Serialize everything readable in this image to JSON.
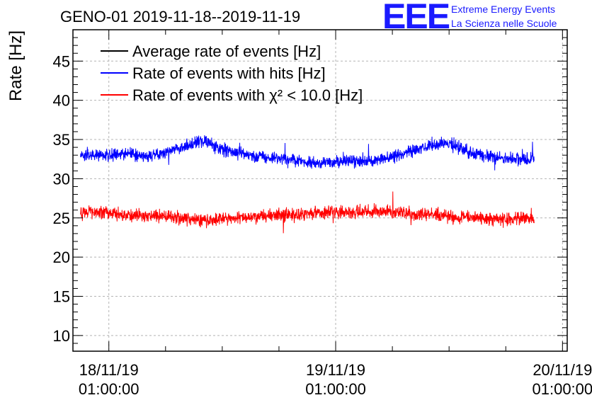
{
  "chart_data": {
    "type": "line",
    "title": "GENO-01 2019-11-18--2019-11-19",
    "logo": {
      "letters": "EEE",
      "line1": "Extreme Energy Events",
      "line2": "La Scienza nelle Scuole",
      "color": "#1a1aff"
    },
    "ylabel": "Rate [Hz]",
    "xlabel": "",
    "ylim": [
      8,
      49
    ],
    "yticks": [
      10,
      15,
      20,
      25,
      30,
      35,
      40,
      45
    ],
    "xlim_hours": [
      -3.8,
      48.5
    ],
    "xticks": [
      {
        "hour": 0,
        "date": "18/11/19",
        "time": "01:00:00"
      },
      {
        "hour": 24,
        "date": "19/11/19",
        "time": "01:00:00"
      },
      {
        "hour": 48,
        "date": "20/11/19",
        "time": "01:00:00"
      }
    ],
    "grid": true,
    "legend_position": "top-left",
    "series": [
      {
        "name": "Average rate of events [Hz]",
        "color": "#000000",
        "x_hours": [],
        "values": []
      },
      {
        "name": "Rate of events with hits [Hz]",
        "color": "#0000ff",
        "x_hours": [
          -3.0,
          -1.0,
          0.0,
          2.0,
          4.0,
          6.0,
          8.0,
          9.5,
          10.5,
          12.0,
          14.0,
          16.0,
          18.0,
          20.0,
          22.0,
          24.0,
          26.0,
          28.0,
          30.0,
          32.0,
          34.0,
          35.5,
          37.0,
          38.0,
          40.0,
          42.0,
          44.0,
          45.0
        ],
        "values": [
          32.8,
          33.0,
          33.0,
          33.2,
          32.8,
          33.3,
          34.2,
          34.8,
          34.6,
          33.8,
          33.2,
          32.8,
          32.6,
          32.2,
          32.0,
          32.1,
          32.3,
          32.3,
          32.8,
          33.5,
          34.2,
          34.6,
          34.0,
          33.4,
          32.9,
          32.5,
          32.5,
          32.6
        ],
        "noise": 0.8
      },
      {
        "name": "Rate of events with χ² < 10.0 [Hz]",
        "color": "#ff0000",
        "x_hours": [
          -3.0,
          -1.0,
          0.0,
          2.0,
          4.0,
          6.0,
          8.0,
          10.0,
          12.0,
          14.0,
          16.0,
          18.0,
          20.0,
          22.0,
          24.0,
          26.0,
          28.0,
          30.0,
          32.0,
          34.0,
          36.0,
          38.0,
          40.0,
          42.0,
          44.0,
          45.0
        ],
        "values": [
          25.6,
          25.8,
          25.6,
          25.4,
          25.2,
          25.2,
          25.0,
          24.7,
          24.8,
          25.0,
          25.2,
          25.4,
          25.4,
          25.6,
          25.8,
          25.7,
          25.8,
          25.8,
          25.4,
          25.4,
          25.2,
          25.0,
          24.9,
          24.9,
          24.9,
          24.9
        ],
        "noise": 0.8
      }
    ]
  }
}
